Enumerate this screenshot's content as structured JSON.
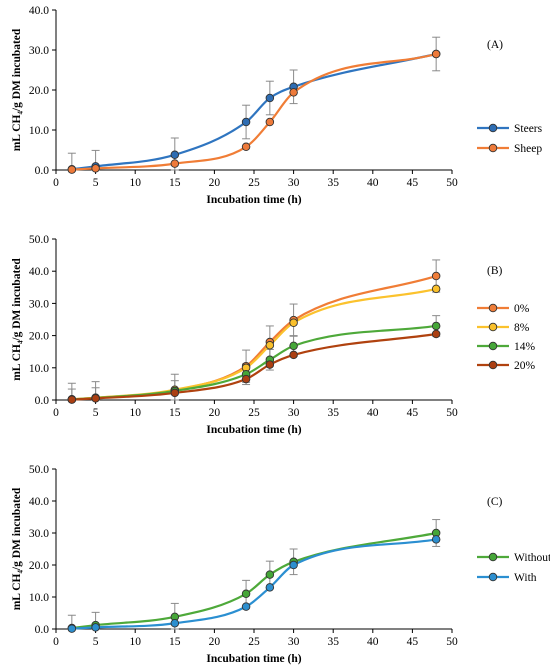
{
  "chart_data": [
    {
      "type": "line",
      "panel_label": "(A)",
      "xlabel": "Incubation time (h)",
      "ylabel": "mL CH₄/g DM incubated",
      "xlim": [
        0,
        50
      ],
      "ylim": [
        0,
        40
      ],
      "x_ticks": [
        "0",
        "5",
        "10",
        "15",
        "20",
        "25",
        "30",
        "35",
        "40",
        "45",
        "50"
      ],
      "y_ticks": [
        "0.0",
        "10.0",
        "20.0",
        "30.0",
        "40.0"
      ],
      "legend_position": "right",
      "x": [
        2,
        5,
        15,
        24,
        27,
        30,
        48
      ],
      "series": [
        {
          "name": "Steers",
          "color": "#2f75c0",
          "marker": "#2e6db3",
          "values": [
            0.2,
            0.9,
            3.8,
            12.0,
            18.0,
            20.8,
            29.0
          ],
          "errors": [
            4.0,
            4.0,
            4.2,
            4.2,
            4.2,
            4.2,
            4.2
          ]
        },
        {
          "name": "Sheep",
          "color": "#f07d36",
          "marker": "#ee7a3a",
          "values": [
            0.1,
            0.4,
            1.6,
            5.8,
            12.0,
            19.4,
            29.0
          ],
          "errors": [
            0,
            0,
            0,
            0,
            0,
            0,
            0
          ]
        }
      ]
    },
    {
      "type": "line",
      "panel_label": "(B)",
      "xlabel": "Incubation time (h)",
      "ylabel": "mL CH₄/g DM incubated",
      "xlim": [
        0,
        50
      ],
      "ylim": [
        0,
        50
      ],
      "x_ticks": [
        "0",
        "5",
        "10",
        "15",
        "20",
        "25",
        "30",
        "35",
        "40",
        "45",
        "50"
      ],
      "y_ticks": [
        "0.0",
        "10.0",
        "20.0",
        "30.0",
        "40.0",
        "50.0"
      ],
      "legend_position": "right",
      "x": [
        2,
        5,
        15,
        24,
        27,
        30,
        48
      ],
      "series": [
        {
          "name": "0%",
          "color": "#f07d36",
          "marker": "#ef7d39",
          "values": [
            0.2,
            0.7,
            3.0,
            10.5,
            18.0,
            24.8,
            38.5
          ],
          "errors": [
            5.0,
            5.0,
            5.0,
            5.0,
            5.0,
            5.0,
            5.0
          ]
        },
        {
          "name": "8%",
          "color": "#fbc22d",
          "marker": "#f9c02b",
          "values": [
            0.2,
            0.7,
            3.2,
            10.0,
            17.0,
            24.0,
            34.5
          ],
          "errors": [
            0,
            0,
            0,
            0,
            0,
            0,
            0
          ]
        },
        {
          "name": "14%",
          "color": "#4ea93a",
          "marker": "#45a638",
          "values": [
            0.2,
            0.6,
            2.8,
            8.0,
            12.5,
            16.8,
            23.0
          ],
          "errors": [
            3.2,
            3.2,
            3.2,
            3.2,
            3.2,
            3.2,
            3.2
          ]
        },
        {
          "name": "20%",
          "color": "#b0420f",
          "marker": "#ab3f12",
          "values": [
            0.1,
            0.5,
            2.2,
            6.5,
            11.0,
            14.0,
            20.5
          ],
          "errors": [
            0,
            0,
            0,
            0,
            0,
            0,
            0
          ]
        }
      ]
    },
    {
      "type": "line",
      "panel_label": "(C)",
      "xlabel": "Incubation time (h)",
      "ylabel": "mL CH₄/g DM incubated",
      "xlim": [
        0,
        50
      ],
      "ylim": [
        0,
        50
      ],
      "x_ticks": [
        "0",
        "5",
        "10",
        "15",
        "20",
        "25",
        "30",
        "35",
        "40",
        "45",
        "50"
      ],
      "y_ticks": [
        "0.0",
        "10.0",
        "20.0",
        "30.0",
        "40.0",
        "50.0"
      ],
      "legend_position": "right",
      "x": [
        2,
        5,
        15,
        24,
        27,
        30,
        48
      ],
      "series": [
        {
          "name": "Without",
          "color": "#4ea93a",
          "marker": "#45a638",
          "values": [
            0.3,
            1.2,
            3.8,
            11.0,
            17.0,
            21.0,
            30.0
          ],
          "errors": [
            4.0,
            4.0,
            4.2,
            4.2,
            4.2,
            4.0,
            4.2
          ]
        },
        {
          "name": "With",
          "color": "#2b8fd1",
          "marker": "#2d8fcf",
          "values": [
            0.1,
            0.5,
            1.8,
            7.0,
            13.0,
            20.0,
            28.0
          ],
          "errors": [
            0,
            0,
            0,
            0,
            0,
            0,
            0
          ]
        }
      ]
    }
  ]
}
